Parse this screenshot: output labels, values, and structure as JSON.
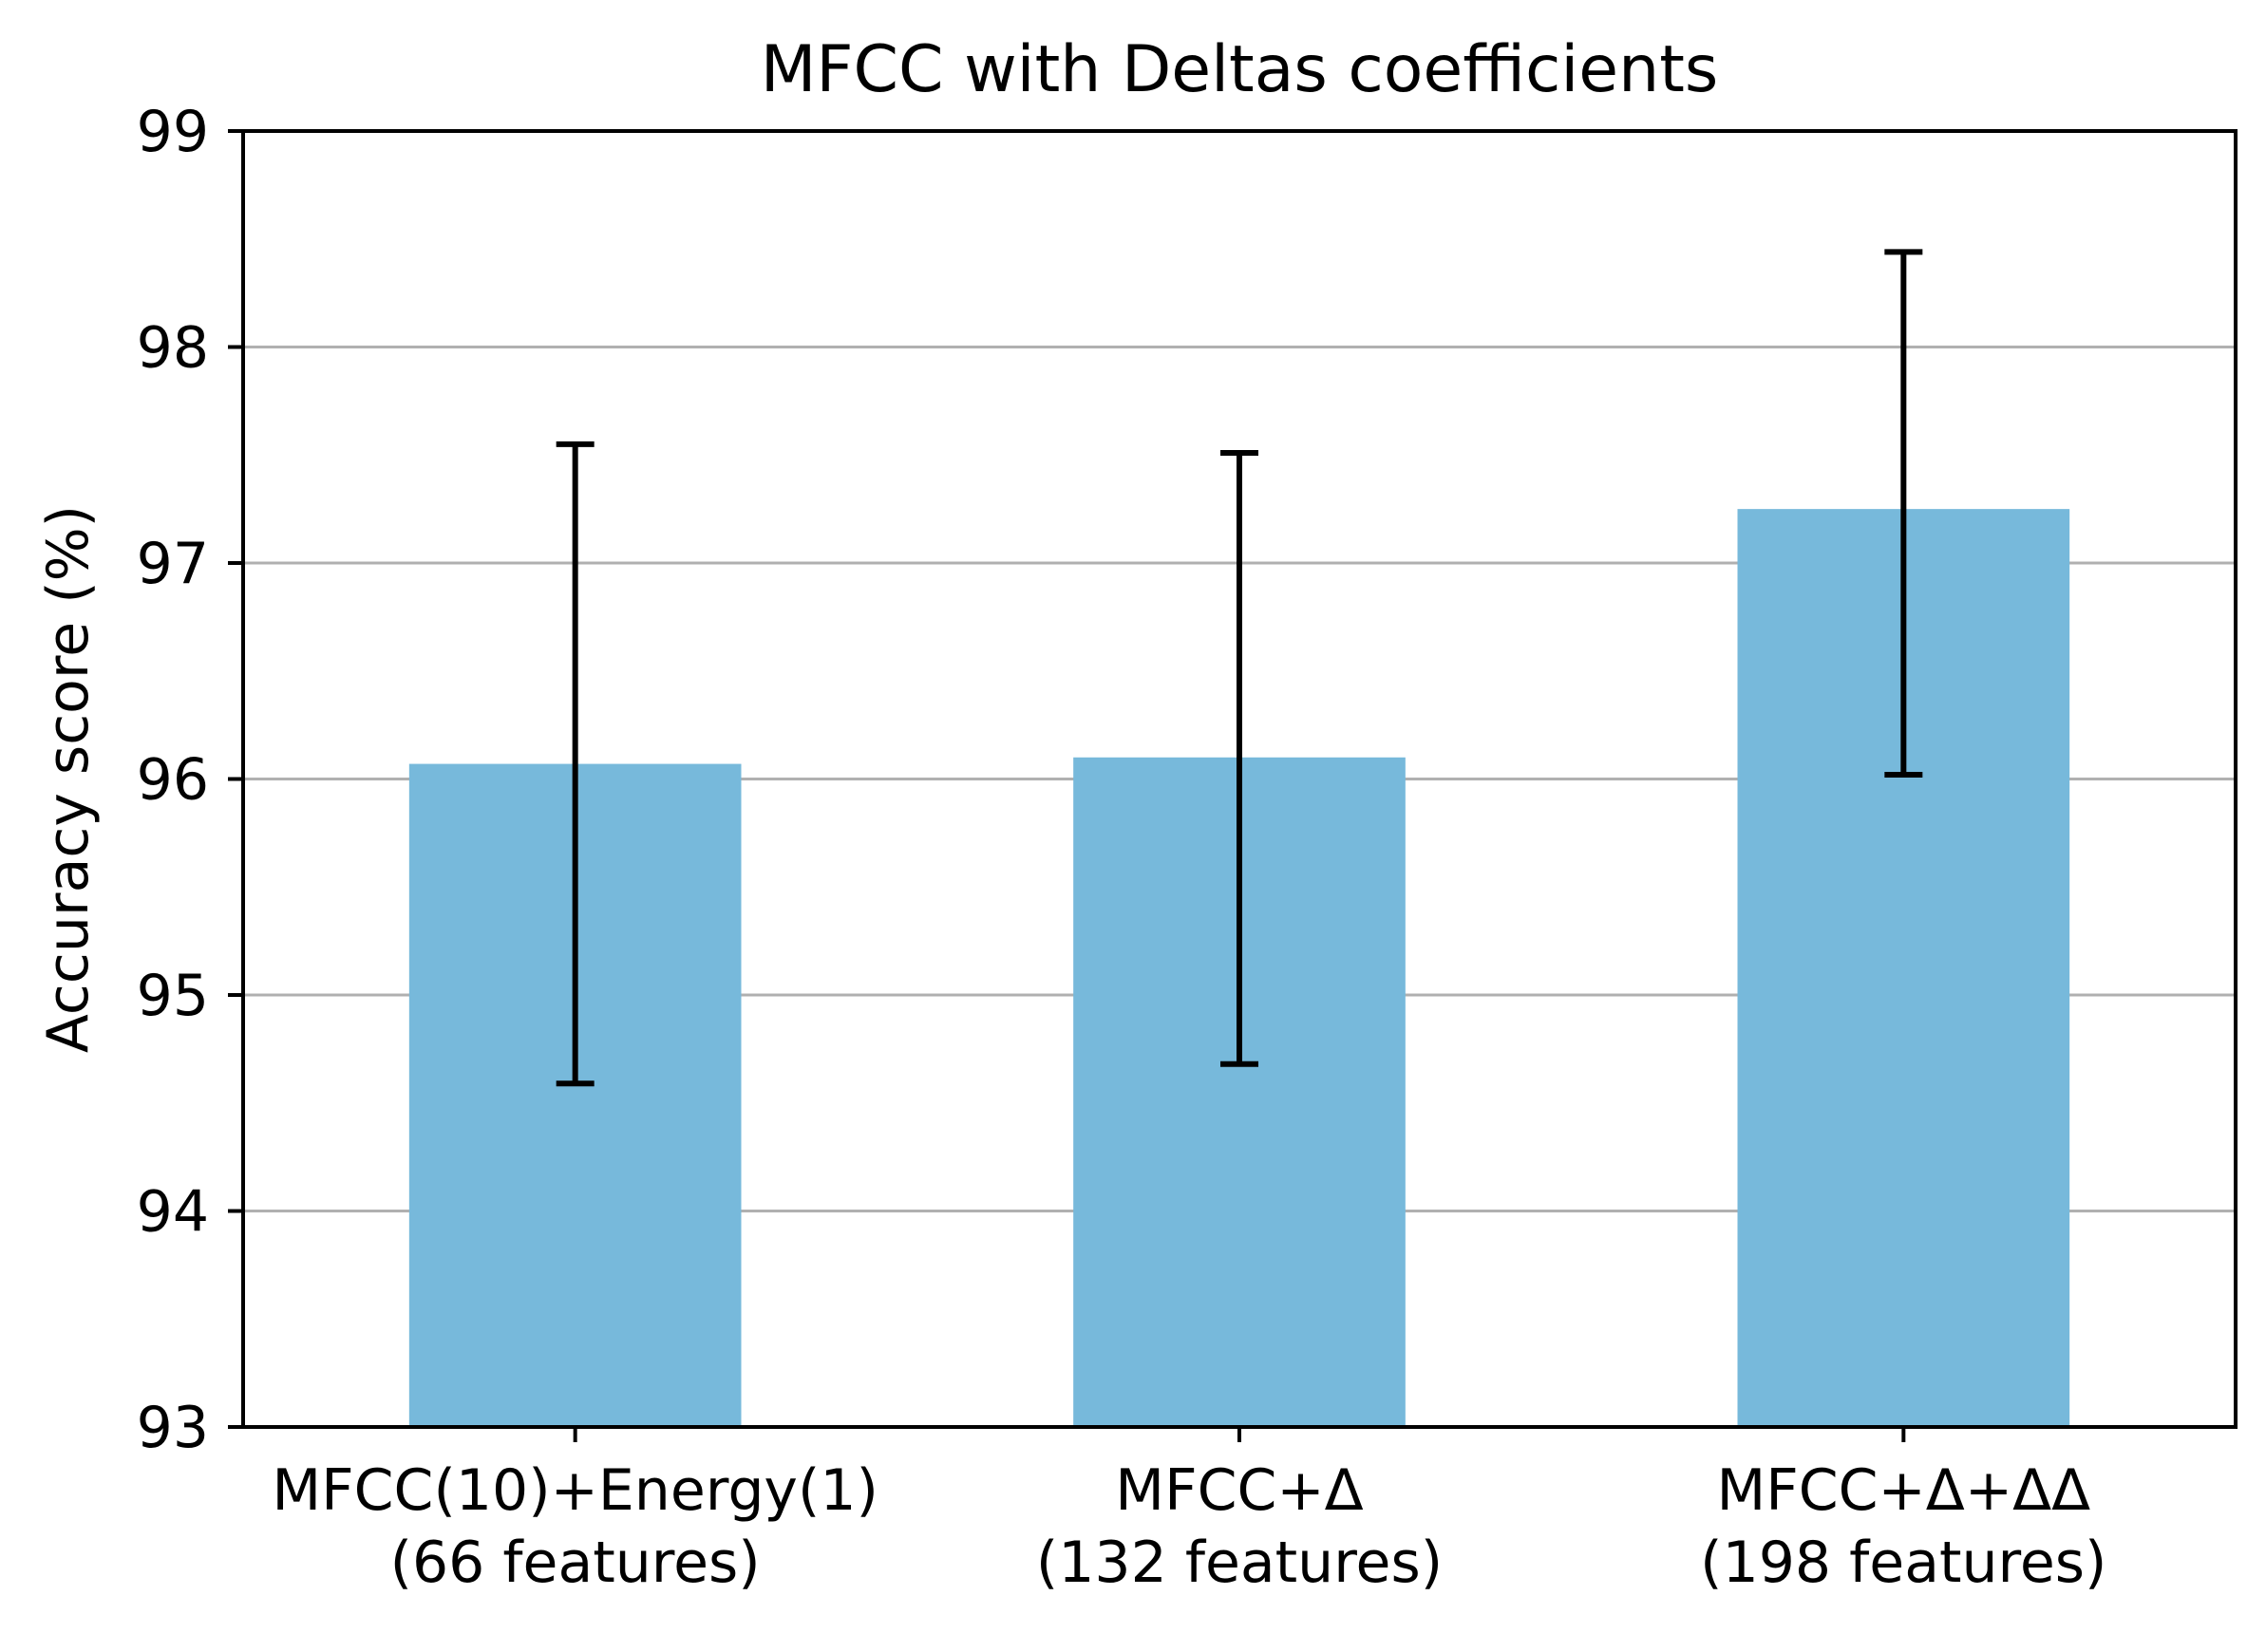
{
  "chart_data": {
    "type": "bar",
    "title": "MFCC with Deltas coefficients",
    "xlabel": "",
    "ylabel": "Accuracy score (%)",
    "ylim": [
      93,
      99
    ],
    "yticks": [
      "93",
      "94",
      "95",
      "96",
      "97",
      "98",
      "99"
    ],
    "grid": "horizontal",
    "categories": [
      [
        "MFCC(10)+Energy(1)",
        "(66 features)"
      ],
      [
        "MFCC+Δ",
        "(132 features)"
      ],
      [
        "MFCC+Δ+ΔΔ",
        "(198 features)"
      ]
    ],
    "values": [
      96.07,
      96.1,
      97.25
    ],
    "error_low": [
      94.59,
      94.68,
      96.02
    ],
    "error_high": [
      97.55,
      97.51,
      98.44
    ],
    "colors": {
      "bar": "#77b9db",
      "grid": "#b0b0b0",
      "axis": "#000000",
      "errorbar": "#000000"
    }
  }
}
